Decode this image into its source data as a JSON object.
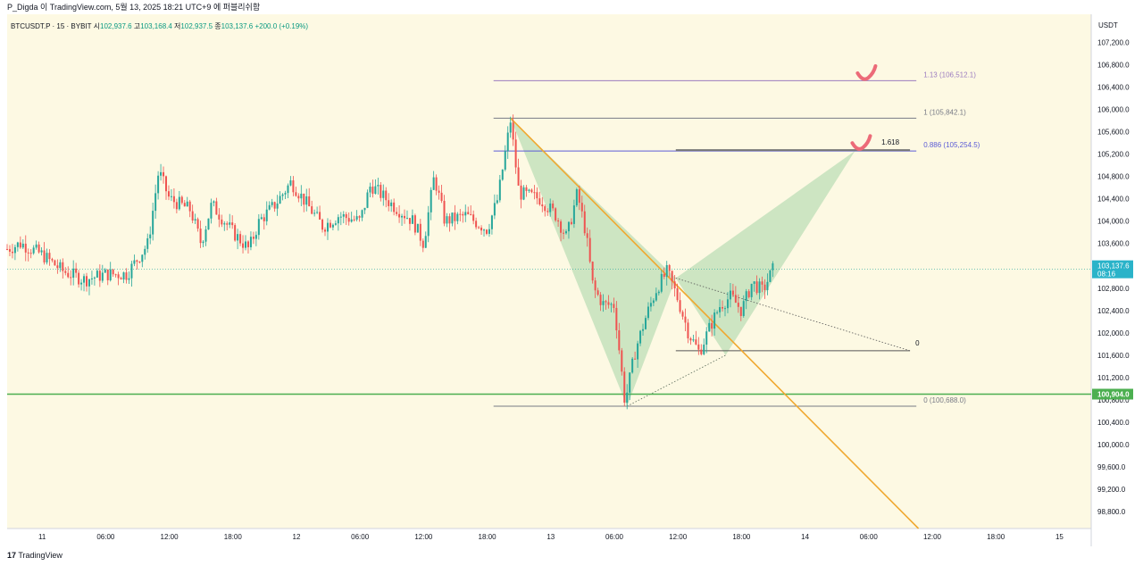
{
  "header": {
    "text": "P_Digda 이 TradingView.com, 5월 13, 2025 18:21 UTC+9 에 퍼블리쉬함"
  },
  "footer": {
    "brand": "TradingView",
    "brand_glyph": "17"
  },
  "legend": {
    "symbol": "BTCUSDT.P · 15 · BYBIT",
    "open_label": "시",
    "open": "102,937.6",
    "high_label": "고",
    "high": "103,168.4",
    "low_label": "저",
    "low": "102,937.5",
    "close_label": "종",
    "close": "103,137.6",
    "change": "+200.0 (+0.19%)"
  },
  "chart_data": {
    "type": "candlestick",
    "currency_label": "USDT",
    "y_ticks": [
      98800,
      99200,
      99600,
      100000,
      100400,
      100800,
      101200,
      101600,
      102000,
      102400,
      102800,
      103200,
      103600,
      104000,
      104400,
      104800,
      105200,
      105600,
      106000,
      106400,
      106800,
      107200
    ],
    "y_tick_labels": [
      "98,800.0",
      "99,200.0",
      "99,600.0",
      "100,000.0",
      "100,400.0",
      "100,800.0",
      "101,200.0",
      "101,600.0",
      "102,000.0",
      "102,400.0",
      "102,800.0",
      "103,200.0",
      "103,600.0",
      "104,000.0",
      "104,400.0",
      "104,800.0",
      "105,200.0",
      "105,600.0",
      "106,000.0",
      "106,400.0",
      "106,800.0",
      "107,200.0"
    ],
    "ylim": [
      98500,
      107700
    ],
    "x_tick_labels": [
      "11",
      "06:00",
      "12:00",
      "18:00",
      "12",
      "06:00",
      "12:00",
      "18:00",
      "13",
      "06:00",
      "12:00",
      "18:00",
      "14",
      "06:00",
      "12:00",
      "18:00",
      "15"
    ],
    "x_tick_hours": [
      0,
      6,
      12,
      18,
      24,
      30,
      36,
      42,
      48,
      54,
      60,
      66,
      72,
      78,
      84,
      90,
      96
    ],
    "xlim_hours": [
      -3.3,
      99
    ],
    "price_path": [
      [
        -3.3,
        103500
      ],
      [
        -2,
        103600
      ],
      [
        0,
        103400
      ],
      [
        2,
        103100
      ],
      [
        4,
        102950
      ],
      [
        6,
        103050
      ],
      [
        8,
        103050
      ],
      [
        10,
        103600
      ],
      [
        11,
        104900
      ],
      [
        12,
        104400
      ],
      [
        14,
        104200
      ],
      [
        15,
        103600
      ],
      [
        16,
        104300
      ],
      [
        18,
        103800
      ],
      [
        19.5,
        103500
      ],
      [
        20.5,
        104000
      ],
      [
        22,
        104300
      ],
      [
        23.5,
        104700
      ],
      [
        25,
        104300
      ],
      [
        26.5,
        103900
      ],
      [
        28,
        104100
      ],
      [
        30,
        104000
      ],
      [
        31,
        104650
      ],
      [
        33,
        104300
      ],
      [
        35,
        104000
      ],
      [
        36,
        103600
      ],
      [
        37,
        104800
      ],
      [
        38,
        104000
      ],
      [
        40,
        104100
      ],
      [
        42,
        103850
      ],
      [
        43,
        104400
      ],
      [
        44.2,
        105800
      ],
      [
        45,
        104500
      ],
      [
        47,
        104400
      ],
      [
        48.5,
        104100
      ],
      [
        49.5,
        103700
      ],
      [
        50.5,
        104500
      ],
      [
        51.3,
        103800
      ],
      [
        52,
        102800
      ],
      [
        53,
        102500
      ],
      [
        54,
        102500
      ],
      [
        55,
        100750
      ],
      [
        56,
        101700
      ],
      [
        57,
        102300
      ],
      [
        58,
        102800
      ],
      [
        59,
        103100
      ],
      [
        60,
        102600
      ],
      [
        61,
        102000
      ],
      [
        62,
        101650
      ],
      [
        63,
        102100
      ],
      [
        64,
        102500
      ],
      [
        65,
        102650
      ],
      [
        66,
        102400
      ],
      [
        67,
        102900
      ],
      [
        68,
        102750
      ],
      [
        69,
        103150
      ]
    ],
    "last_price": 103137.6,
    "last_price_label": "103,137.6",
    "countdown": "08:16",
    "support_level": 100904,
    "support_label": "100,904.0",
    "fib_lines": [
      {
        "label": "1.13 (106,512.1)",
        "price": 106512.1,
        "color": "#9c7cc0"
      },
      {
        "label": "1 (105,842.1)",
        "price": 105842.1,
        "color": "#787b86"
      },
      {
        "label": "0.886 (105,254.5)",
        "price": 105254.5,
        "color": "#5b5bd6"
      },
      {
        "label": "0 (100,688.0)",
        "price": 100688.0,
        "color": "#787b86"
      }
    ],
    "fib_x_hours": [
      42.6,
      82.5
    ],
    "pattern": {
      "fill": "#a5d6a7",
      "X": [
        44.2,
        105842
      ],
      "A": [
        55.2,
        100688
      ],
      "B": [
        59.8,
        102980
      ],
      "C": [
        64.5,
        101600
      ],
      "D": [
        76.7,
        105254.5
      ]
    },
    "trendline": {
      "from": [
        44.2,
        105842
      ],
      "to": [
        82.7,
        98500
      ],
      "color": "#f0a830"
    },
    "dotted_line": {
      "from": [
        59.8,
        102980
      ],
      "to": [
        81.9,
        101680
      ]
    },
    "level_0": {
      "label": "0",
      "price": 101680,
      "x_hours": [
        59.8,
        81.9
      ]
    },
    "level_1618": {
      "label": "1.618",
      "price": 105254.5,
      "x_hours": [
        59.8,
        81.9
      ]
    },
    "marks": [
      {
        "name": "check-mark-1",
        "x_hours": 77.8,
        "price": 106550
      },
      {
        "name": "check-mark-2",
        "x_hours": 77.3,
        "price": 105300
      }
    ],
    "colors": {
      "up": "#26a69a",
      "down": "#ef5350",
      "background": "#fdf9e3",
      "support": "#4caf50",
      "last_price_bg": "#2ab3c9"
    }
  }
}
